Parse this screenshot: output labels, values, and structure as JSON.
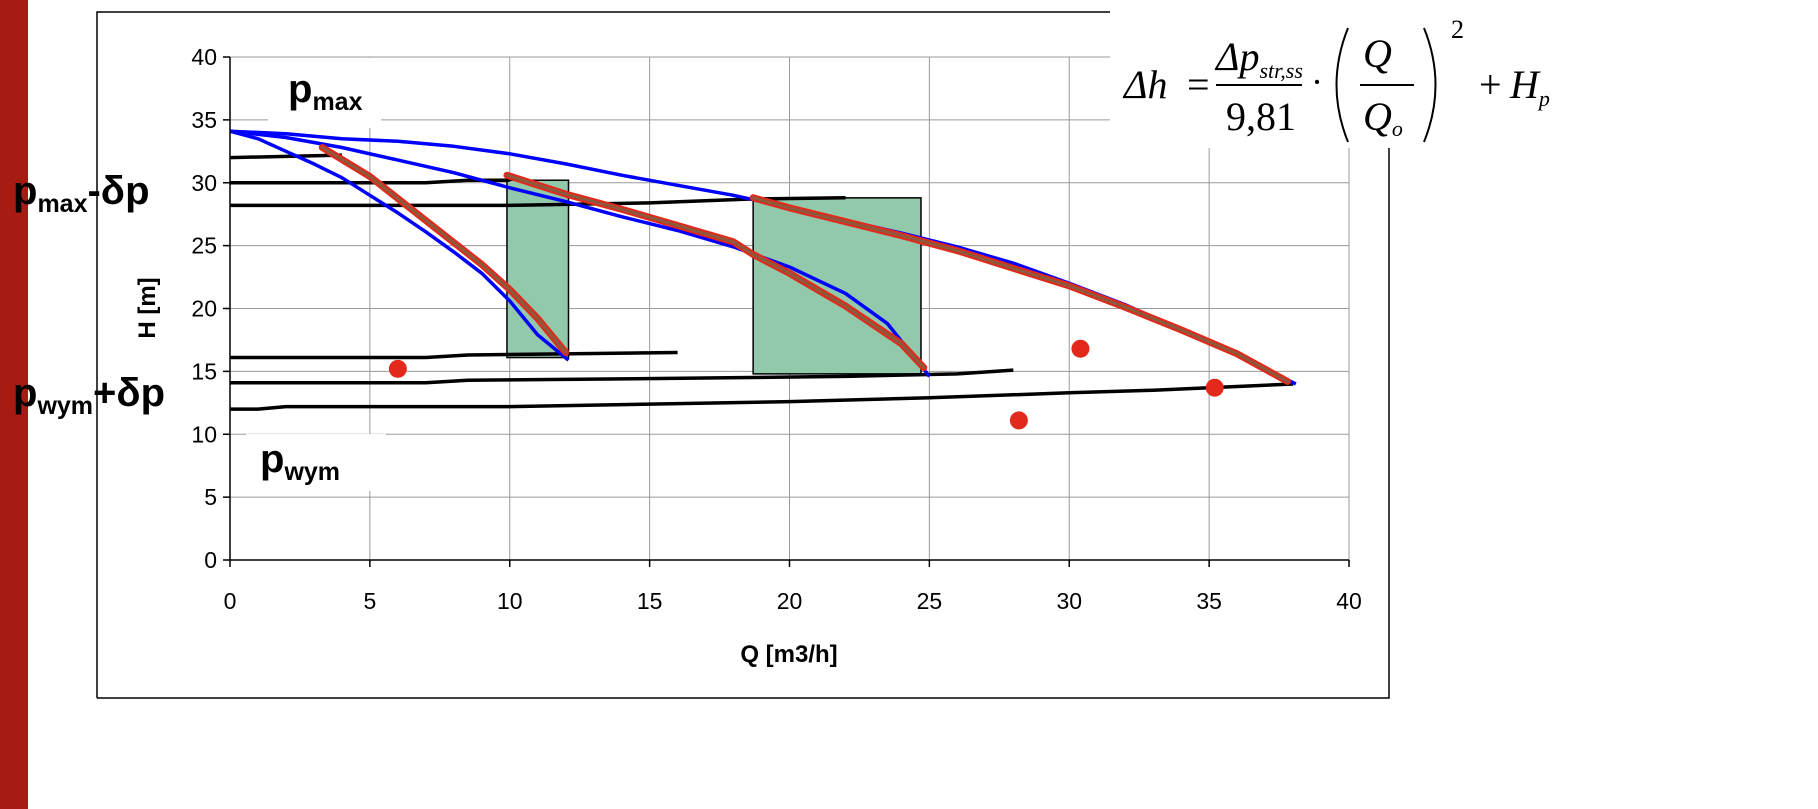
{
  "colors": {
    "side_bar": "#a61c12",
    "pump_curve": "#0000ff",
    "characteristic": "#e3291c",
    "characteristic_inner": "#8b5a3c",
    "pressure_line": "#000000",
    "region_fill": "#93c9ab",
    "point": "#e3291c"
  },
  "labels": {
    "p_max": {
      "base": "p",
      "sub": "max"
    },
    "p_max_minus": {
      "base": "p",
      "sub": "max",
      "suffix": "-δp"
    },
    "p_wym_plus": {
      "base": "p",
      "sub": "wym",
      "suffix": "+δp"
    },
    "p_wym": {
      "base": "p",
      "sub": "wym"
    }
  },
  "formula": {
    "lhs": "Δh",
    "eq": "=",
    "numerator": "Δp",
    "numerator_sub": "str,ss",
    "denominator": "9,81",
    "dot": "·",
    "frac_num": "Q",
    "frac_den": "Q",
    "frac_den_sub": "o",
    "exponent": "2",
    "plus": "+",
    "term": "H",
    "term_sub": "p"
  },
  "chart_data": {
    "type": "line",
    "xlabel": "Q [m3/h]",
    "ylabel": "H [m]",
    "xlim": [
      0,
      40
    ],
    "ylim": [
      0,
      40
    ],
    "xticks": [
      0,
      5,
      10,
      15,
      20,
      25,
      30,
      35,
      40
    ],
    "yticks": [
      0,
      5,
      10,
      15,
      20,
      25,
      30,
      35,
      40
    ],
    "grid": true,
    "pump_curves": [
      {
        "points": [
          [
            0,
            34.1
          ],
          [
            2,
            33.9
          ],
          [
            4,
            33.5
          ],
          [
            6,
            33.3
          ],
          [
            8,
            32.9
          ],
          [
            10,
            32.3
          ],
          [
            12,
            31.5
          ],
          [
            14,
            30.6
          ],
          [
            16,
            29.8
          ],
          [
            18,
            29.0
          ],
          [
            20,
            28.0
          ],
          [
            22,
            27.0
          ],
          [
            24,
            26.0
          ],
          [
            26,
            24.9
          ],
          [
            28,
            23.6
          ],
          [
            30,
            22.0
          ],
          [
            32,
            20.3
          ],
          [
            34,
            18.3
          ],
          [
            36,
            16.3
          ],
          [
            38.1,
            14.0
          ]
        ]
      },
      {
        "points": [
          [
            0,
            34.1
          ],
          [
            2,
            33.6
          ],
          [
            4,
            32.8
          ],
          [
            6,
            31.8
          ],
          [
            8,
            30.8
          ],
          [
            10,
            29.6
          ],
          [
            12,
            28.5
          ],
          [
            14,
            27.3
          ],
          [
            16,
            26.2
          ],
          [
            18,
            24.9
          ],
          [
            20,
            23.3
          ],
          [
            22,
            21.2
          ],
          [
            23.5,
            18.8
          ],
          [
            25,
            14.6
          ]
        ]
      },
      {
        "points": [
          [
            0,
            34.1
          ],
          [
            1,
            33.5
          ],
          [
            2,
            32.5
          ],
          [
            3,
            31.5
          ],
          [
            4,
            30.4
          ],
          [
            5,
            29.0
          ],
          [
            6,
            27.6
          ],
          [
            7,
            26.1
          ],
          [
            8,
            24.5
          ],
          [
            9,
            22.8
          ],
          [
            10,
            20.6
          ],
          [
            11,
            17.9
          ],
          [
            12.1,
            15.9
          ]
        ]
      }
    ],
    "characteristics": [
      {
        "points": [
          [
            3.3,
            32.8
          ],
          [
            5,
            30.5
          ],
          [
            7,
            27.0
          ],
          [
            9,
            23.5
          ],
          [
            10,
            21.5
          ],
          [
            11,
            19.2
          ],
          [
            12,
            16.5
          ]
        ]
      },
      {
        "points": [
          [
            9.9,
            30.6
          ],
          [
            12,
            29.1
          ],
          [
            14,
            27.9
          ],
          [
            16,
            26.6
          ],
          [
            18,
            25.3
          ],
          [
            18.7,
            24.3
          ],
          [
            20,
            22.8
          ],
          [
            22,
            20.2
          ],
          [
            24,
            17.2
          ],
          [
            24.8,
            15.3
          ]
        ]
      },
      {
        "points": [
          [
            18.7,
            28.8
          ],
          [
            20,
            28.0
          ],
          [
            22,
            26.9
          ],
          [
            24,
            25.8
          ],
          [
            26,
            24.6
          ],
          [
            28,
            23.2
          ],
          [
            30,
            21.8
          ],
          [
            32,
            20.1
          ],
          [
            34,
            18.3
          ],
          [
            36,
            16.4
          ],
          [
            37.8,
            14.2
          ]
        ]
      }
    ],
    "pressure_lines": [
      {
        "points": [
          [
            0,
            32.0
          ],
          [
            4,
            32.2
          ]
        ]
      },
      {
        "points": [
          [
            0,
            30.0
          ],
          [
            7,
            30.0
          ],
          [
            8.5,
            30.2
          ],
          [
            10,
            30.2
          ]
        ]
      },
      {
        "points": [
          [
            0,
            28.2
          ],
          [
            10,
            28.2
          ],
          [
            15,
            28.4
          ],
          [
            18.5,
            28.7
          ],
          [
            22,
            28.8
          ]
        ]
      },
      {
        "points": [
          [
            0,
            16.1
          ],
          [
            7,
            16.1
          ],
          [
            8.5,
            16.3
          ],
          [
            16,
            16.5
          ]
        ]
      },
      {
        "points": [
          [
            0,
            14.1
          ],
          [
            7,
            14.1
          ],
          [
            8.5,
            14.3
          ],
          [
            14,
            14.4
          ],
          [
            22,
            14.6
          ],
          [
            26,
            14.8
          ],
          [
            28,
            15.1
          ]
        ]
      },
      {
        "points": [
          [
            0,
            12.0
          ],
          [
            1,
            12.0
          ],
          [
            2,
            12.2
          ],
          [
            10,
            12.2
          ],
          [
            15,
            12.4
          ],
          [
            20,
            12.6
          ],
          [
            25,
            12.9
          ],
          [
            30,
            13.3
          ],
          [
            33,
            13.5
          ],
          [
            35,
            13.7
          ],
          [
            37,
            13.9
          ],
          [
            38,
            14.0
          ]
        ]
      }
    ],
    "regions": [
      {
        "x": [
          9.9,
          12.1
        ],
        "y": [
          16.1,
          30.2
        ]
      },
      {
        "x": [
          18.7,
          24.7
        ],
        "y": [
          14.8,
          28.8
        ]
      }
    ],
    "points": [
      [
        6.0,
        15.2
      ],
      [
        28.2,
        11.1
      ],
      [
        30.4,
        16.8
      ],
      [
        35.2,
        13.7
      ]
    ]
  }
}
